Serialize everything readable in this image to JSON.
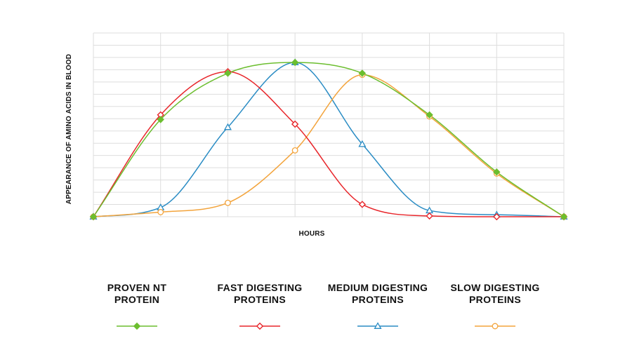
{
  "chart_data": {
    "type": "line",
    "title": "",
    "xlabel": "HOURS",
    "ylabel": "APPEARANCE OF AMINO ACIDS IN BLOOD",
    "x": [
      0,
      1,
      2,
      3,
      4,
      5,
      6,
      7
    ],
    "xlim": [
      0,
      7
    ],
    "ylim": [
      0,
      100
    ],
    "grid": true,
    "legend_position": "bottom",
    "series": [
      {
        "name": "PROVEN NT PROTEIN",
        "color": "#6cbe2f",
        "marker": "diamond-filled",
        "values": [
          0,
          63,
          93,
          100,
          93,
          66,
          29,
          0
        ]
      },
      {
        "name": "FAST DIGESTING PROTEINS",
        "color": "#e8262b",
        "marker": "diamond-open",
        "values": [
          0,
          66,
          94,
          60,
          8,
          0.5,
          0,
          0
        ]
      },
      {
        "name": "MEDIUM DIGESTING PROTEINS",
        "color": "#2a8cc4",
        "marker": "triangle-open",
        "values": [
          0,
          6,
          58,
          100,
          47,
          4,
          1.3,
          0
        ]
      },
      {
        "name": "SLOW DIGESTING PROTEINS",
        "color": "#f3a43c",
        "marker": "circle-open",
        "values": [
          0,
          3,
          9,
          43,
          92,
          65,
          28,
          0
        ]
      }
    ]
  }
}
